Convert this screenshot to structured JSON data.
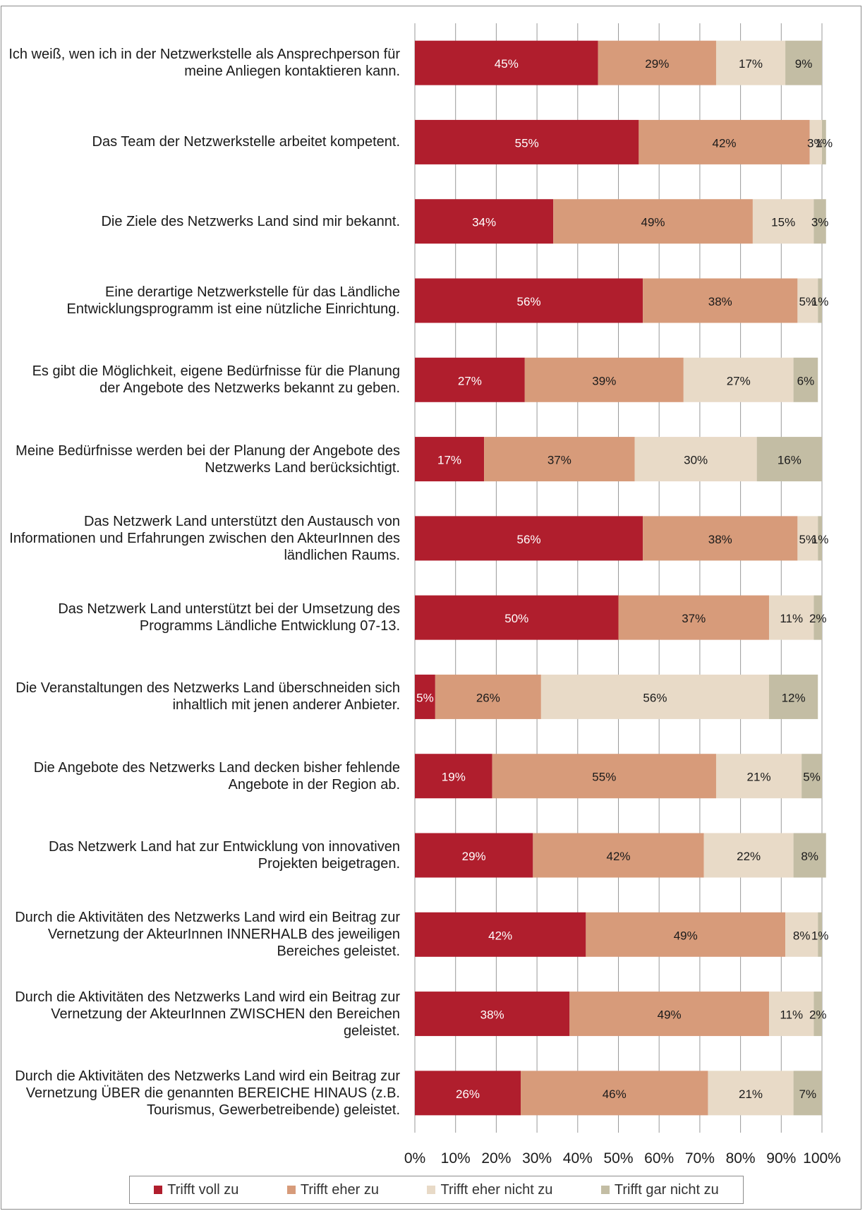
{
  "chart_data": {
    "type": "bar",
    "orientation": "horizontal",
    "stacked": "percent",
    "categories": [
      "Ich weiß, wen ich in der Netzwerkstelle als Ansprechperson für meine Anliegen kontaktieren kann.",
      "Das Team der Netzwerkstelle arbeitet kompetent.",
      "Die Ziele des Netzwerks Land sind mir bekannt.",
      "Eine derartige Netzwerkstelle für das Ländliche Entwicklungsprogramm ist eine nützliche Einrichtung.",
      "Es gibt die Möglichkeit, eigene Bedürfnisse für die Planung der Angebote des Netzwerks bekannt zu geben.",
      "Meine Bedürfnisse werden bei der Planung der Angebote des Netzwerks Land berücksichtigt.",
      "Das Netzwerk Land unterstützt den Austausch von Informationen und Erfahrungen zwischen den AkteurInnen des ländlichen Raums.",
      "Das Netzwerk Land unterstützt bei der Umsetzung des Programms Ländliche Entwicklung 07-13.",
      "Die Veranstaltungen des Netzwerks Land überschneiden sich inhaltlich mit jenen anderer Anbieter.",
      "Die Angebote des Netzwerks Land decken bisher fehlende Angebote in der Region ab.",
      "Das Netzwerk Land hat zur Entwicklung von innovativen Projekten beigetragen.",
      "Durch die Aktivitäten des Netzwerks Land wird ein Beitrag zur Vernetzung der AkteurInnen INNERHALB des jeweiligen Bereiches geleistet.",
      "Durch die Aktivitäten des Netzwerks Land wird ein Beitrag zur Vernetzung der AkteurInnen ZWISCHEN den Bereichen geleistet.",
      "Durch die Aktivitäten des Netzwerks Land wird ein Beitrag zur Vernetzung ÜBER die genannten BEREICHE HINAUS (z.B. Tourismus, Gewerbetreibende) geleistet."
    ],
    "series": [
      {
        "name": "Trifft voll zu",
        "color": "#b01e2d",
        "label_color": "#ffffff",
        "values": [
          45,
          55,
          34,
          56,
          27,
          17,
          56,
          50,
          5,
          19,
          29,
          42,
          38,
          26
        ]
      },
      {
        "name": "Trifft eher zu",
        "color": "#d79b7a",
        "label_color": "#1a1a1a",
        "values": [
          29,
          42,
          49,
          38,
          39,
          37,
          38,
          37,
          26,
          55,
          42,
          49,
          49,
          46
        ]
      },
      {
        "name": "Trifft eher nicht zu",
        "color": "#e8dac7",
        "label_color": "#1a1a1a",
        "values": [
          17,
          3,
          15,
          5,
          27,
          30,
          5,
          11,
          56,
          21,
          22,
          8,
          11,
          21
        ]
      },
      {
        "name": "Trifft gar nicht zu",
        "color": "#c3bda4",
        "label_color": "#1a1a1a",
        "values": [
          9,
          1,
          3,
          1,
          6,
          16,
          1,
          2,
          12,
          5,
          8,
          1,
          2,
          7
        ]
      }
    ],
    "xlim": [
      0,
      100
    ],
    "x_ticks": [
      "0%",
      "10%",
      "20%",
      "30%",
      "40%",
      "50%",
      "60%",
      "70%",
      "80%",
      "90%",
      "100%"
    ],
    "grid": true,
    "legend_position": "bottom"
  }
}
